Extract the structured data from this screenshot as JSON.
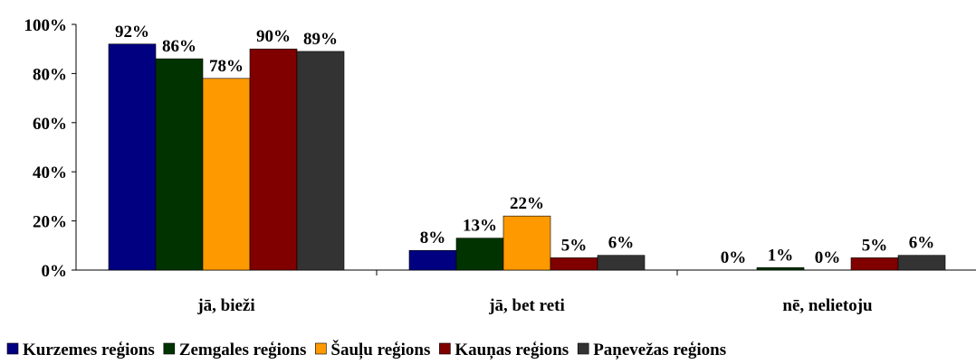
{
  "chart_data": {
    "type": "bar",
    "categories": [
      "jā, bieži",
      "jā, bet reti",
      "nē, nelietoju"
    ],
    "series": [
      {
        "name": "Kurzemes reģions",
        "color": "#000080",
        "values": [
          92,
          8,
          0
        ],
        "value_labels": [
          "92%",
          "8%",
          "0%"
        ]
      },
      {
        "name": "Zemgales reģions",
        "color": "#003300",
        "values": [
          86,
          13,
          1
        ],
        "value_labels": [
          "86%",
          "13%",
          "1%"
        ]
      },
      {
        "name": "Šauļu reģions",
        "color": "#ff9900",
        "values": [
          78,
          22,
          0
        ],
        "value_labels": [
          "78%",
          "22%",
          "0%"
        ]
      },
      {
        "name": "Kauņas reģions",
        "color": "#800000",
        "values": [
          90,
          5,
          5
        ],
        "value_labels": [
          "90%",
          "5%",
          "5%"
        ]
      },
      {
        "name": "Paņevežas reģions",
        "color": "#333333",
        "values": [
          89,
          6,
          6
        ],
        "value_labels": [
          "89%",
          "6%",
          "6%"
        ]
      }
    ],
    "ylim": [
      0,
      100
    ],
    "yticks": [
      {
        "value": 0,
        "label": "0%"
      },
      {
        "value": 20,
        "label": "20%"
      },
      {
        "value": 40,
        "label": "40%"
      },
      {
        "value": 60,
        "label": "60%"
      },
      {
        "value": 80,
        "label": "80%"
      },
      {
        "value": 100,
        "label": "100%"
      }
    ],
    "legend": "bottom"
  }
}
